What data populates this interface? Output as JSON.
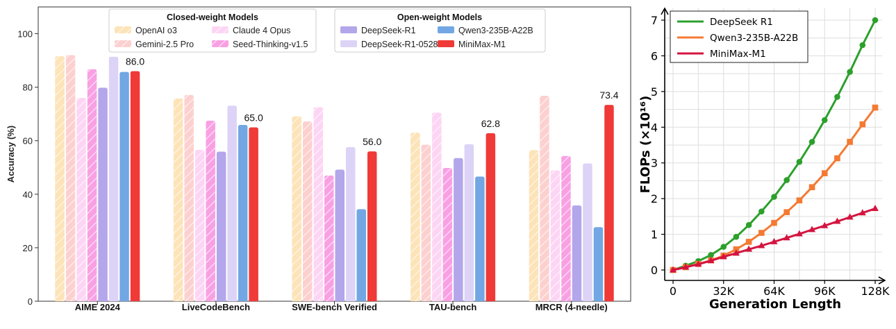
{
  "chart_data": [
    {
      "type": "bar",
      "ylabel": "Accuracy (%)",
      "ylim": [
        0,
        110
      ],
      "yticks": [
        "0",
        "20",
        "40",
        "60",
        "80",
        "100"
      ],
      "categories": [
        "AIME 2024",
        "LiveCodeBench",
        "SWE-bench Verified",
        "TAU-bench",
        "MRCR (4-needle)"
      ],
      "legend_groups": [
        {
          "title": "Closed-weight Models",
          "entries": [
            "OpenAI o3",
            "Claude 4 Opus",
            "Gemini-2.5 Pro",
            "Seed-Thinking-v1.5"
          ]
        },
        {
          "title": "Open-weight Models",
          "entries": [
            "DeepSeek-R1",
            "Qwen3-235B-A22B",
            "DeepSeek-R1-0528",
            "MiniMax-M1"
          ]
        }
      ],
      "series": [
        {
          "name": "OpenAI o3",
          "color": "#fde3b8",
          "hatch": true,
          "values": [
            91.6,
            75.8,
            69.1,
            63.0,
            56.5
          ]
        },
        {
          "name": "Gemini-2.5 Pro",
          "color": "#fdd0d0",
          "hatch": true,
          "values": [
            92.0,
            77.1,
            67.2,
            58.5,
            76.8
          ]
        },
        {
          "name": "Claude 4 Opus",
          "color": "#fdd5f4",
          "hatch": true,
          "values": [
            76.0,
            56.6,
            72.5,
            70.5,
            48.9
          ]
        },
        {
          "name": "Seed-Thinking-v1.5",
          "color": "#f9a0e3",
          "hatch": true,
          "values": [
            86.7,
            67.5,
            47.0,
            49.8,
            54.3
          ]
        },
        {
          "name": "DeepSeek-R1",
          "color": "#b3a6ea",
          "hatch": false,
          "values": [
            79.8,
            55.9,
            49.2,
            53.5,
            35.8
          ]
        },
        {
          "name": "DeepSeek-R1-0528",
          "color": "#dcd3f7",
          "hatch": false,
          "values": [
            91.4,
            73.1,
            57.6,
            58.7,
            51.5
          ]
        },
        {
          "name": "Qwen3-235B-A22B",
          "color": "#72a7e3",
          "hatch": false,
          "values": [
            85.7,
            65.9,
            34.4,
            46.6,
            27.7
          ]
        },
        {
          "name": "MiniMax-M1",
          "color": "#ef3a38",
          "hatch": false,
          "values": [
            86.0,
            65.0,
            56.0,
            62.8,
            73.4
          ]
        }
      ],
      "value_labels": [
        "86.0",
        "65.0",
        "56.0",
        "62.8",
        "73.4"
      ]
    },
    {
      "type": "line",
      "xlabel": "Generation Length",
      "ylabel": "FLOPs (×10¹⁶)",
      "xlim": [
        0,
        128
      ],
      "ylim": [
        -0.3,
        7.4
      ],
      "xticks": [
        "0",
        "32K",
        "64K",
        "96K",
        "128K"
      ],
      "yticks": [
        "0",
        "1",
        "2",
        "3",
        "4",
        "5",
        "6",
        "7"
      ],
      "x": [
        0,
        8,
        16,
        24,
        32,
        40,
        48,
        56,
        64,
        72,
        80,
        88,
        96,
        104,
        112,
        120,
        128
      ],
      "series": [
        {
          "name": "DeepSeek R1",
          "color": "#2ca02c",
          "marker": "circle",
          "values": [
            0,
            0.12,
            0.25,
            0.42,
            0.65,
            0.93,
            1.26,
            1.64,
            2.05,
            2.52,
            3.03,
            3.59,
            4.2,
            4.85,
            5.55,
            6.3,
            7.0
          ]
        },
        {
          "name": "Qwen3-235B-A22B",
          "color": "#f47a33",
          "marker": "square",
          "values": [
            0,
            0.08,
            0.17,
            0.27,
            0.4,
            0.58,
            0.79,
            1.04,
            1.32,
            1.62,
            1.95,
            2.32,
            2.71,
            3.13,
            3.59,
            4.08,
            4.55
          ]
        },
        {
          "name": "MiniMax-M1",
          "color": "#d4143f",
          "marker": "triangle",
          "values": [
            0,
            0.08,
            0.16,
            0.26,
            0.37,
            0.47,
            0.58,
            0.68,
            0.79,
            0.9,
            1.01,
            1.13,
            1.24,
            1.36,
            1.48,
            1.6,
            1.72
          ]
        }
      ]
    }
  ]
}
